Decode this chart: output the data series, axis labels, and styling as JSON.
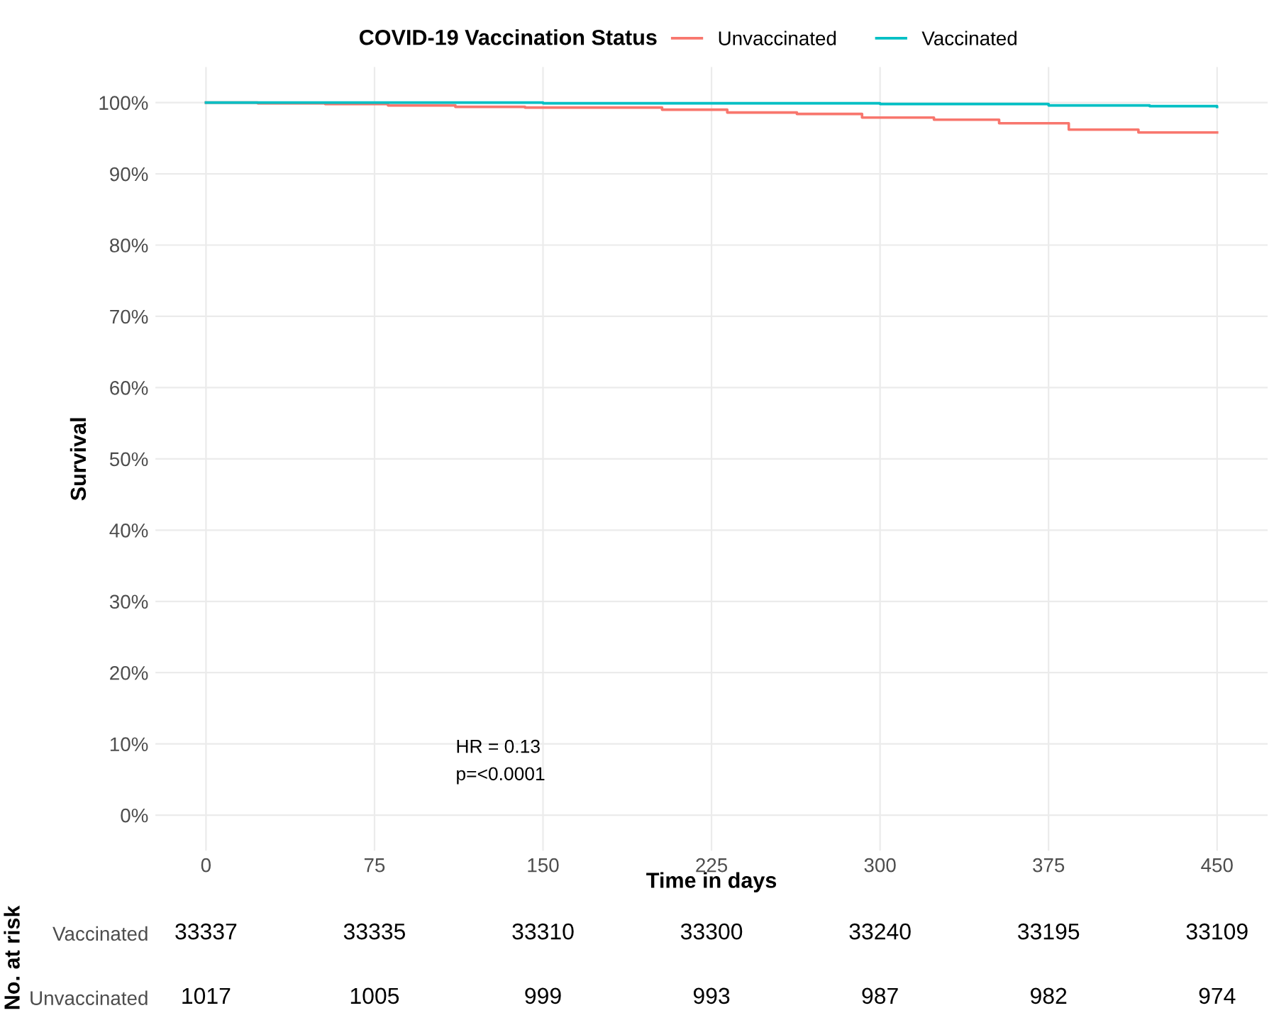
{
  "chart_data": [
    {
      "type": "step",
      "xlabel": "Time in days",
      "ylabel": "Survival",
      "legend_title": "COVID-19 Vaccination Status",
      "legend": "top",
      "xlim": [
        -22.5,
        472.5
      ],
      "xticks": [
        0,
        75,
        150,
        225,
        300,
        375,
        450
      ],
      "ylim": [
        -5,
        105
      ],
      "yticks": [
        {
          "value": 0,
          "label": "0%"
        },
        {
          "value": 10,
          "label": "10%"
        },
        {
          "value": 20,
          "label": "20%"
        },
        {
          "value": 30,
          "label": "30%"
        },
        {
          "value": 40,
          "label": "40%"
        },
        {
          "value": 50,
          "label": "50%"
        },
        {
          "value": 60,
          "label": "60%"
        },
        {
          "value": 70,
          "label": "70%"
        },
        {
          "value": 80,
          "label": "80%"
        },
        {
          "value": 90,
          "label": "90%"
        },
        {
          "value": 100,
          "label": "100%"
        }
      ],
      "grid": true,
      "series": [
        {
          "name": "Unvaccinated",
          "color": "#f8766d",
          "x": [
            0,
            23,
            53,
            81,
            111,
            142,
            203,
            232,
            263,
            292,
            324,
            353,
            384,
            415,
            450
          ],
          "values": [
            100,
            99.9,
            99.8,
            99.6,
            99.4,
            99.3,
            99.0,
            98.6,
            98.4,
            97.9,
            97.6,
            97.1,
            96.2,
            95.8,
            95.8
          ]
        },
        {
          "name": "Vaccinated",
          "color": "#00bfc4",
          "x": [
            0,
            75,
            150,
            225,
            300,
            375,
            420,
            450
          ],
          "values": [
            100,
            100,
            99.9,
            99.9,
            99.8,
            99.6,
            99.5,
            99.4
          ]
        }
      ],
      "annotations": [
        "HR = 0.13",
        "p=<0.0001"
      ]
    },
    {
      "type": "heatmap",
      "ylabel": "No. at risk",
      "categories": [
        null,
        null,
        null,
        null,
        null,
        null,
        null
      ],
      "data_labels": true,
      "y_categories": [
        "Vaccinated",
        "Unvaccinated"
      ],
      "cells": [
        [
          33337,
          33335,
          33310,
          33300,
          33240,
          33195,
          33109
        ],
        [
          1017,
          1005,
          999,
          993,
          987,
          982,
          974
        ]
      ]
    }
  ]
}
